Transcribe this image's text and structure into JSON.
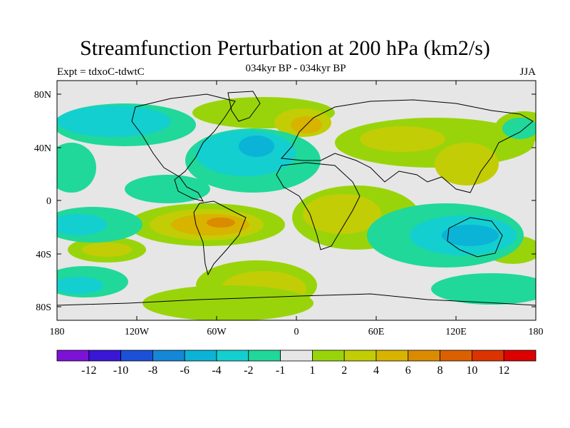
{
  "title": "Streamfunction Perturbation at 200 hPa (km2/s)",
  "expt": "Expt = tdxoC-tdwtC",
  "subtitle": "034kyr BP - 034kyr BP",
  "season": "JJA",
  "map": {
    "lon_labels": [
      "180",
      "120W",
      "60W",
      "0",
      "60E",
      "120E",
      "180"
    ],
    "lat_labels": [
      "80N",
      "40N",
      "0",
      "40S",
      "80S"
    ],
    "background_color": "#e6e6e6"
  },
  "colorbar": {
    "colors": [
      "#7b12d6",
      "#3a16d6",
      "#1c50d6",
      "#1487d6",
      "#0bb4d6",
      "#14cfd0",
      "#20d89a",
      "#e6e6e6",
      "#99d40a",
      "#c2cd06",
      "#d8b300",
      "#db8b00",
      "#dc6000",
      "#dc3400",
      "#dc0000"
    ],
    "labels": [
      "-12",
      "-10",
      "-8",
      "-6",
      "-4",
      "-2",
      "-1",
      "1",
      "2",
      "4",
      "6",
      "8",
      "10",
      "12"
    ]
  }
}
